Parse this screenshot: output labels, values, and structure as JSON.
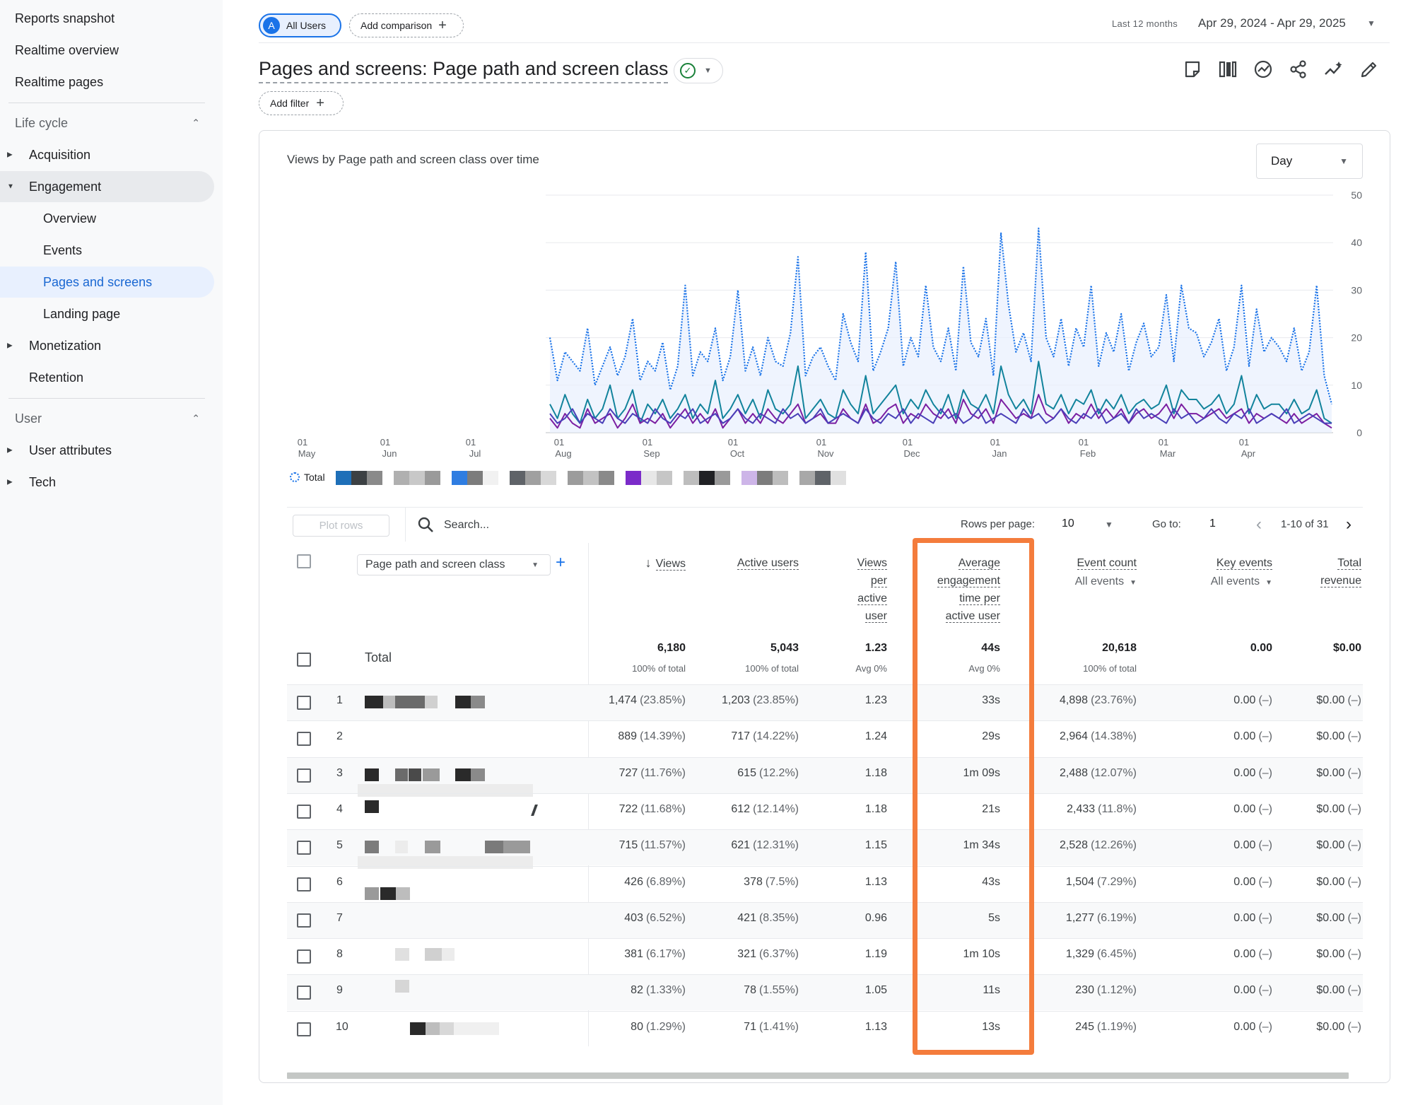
{
  "sidebar": {
    "top_items": [
      "Reports snapshot",
      "Realtime overview",
      "Realtime pages"
    ],
    "sections": [
      {
        "title": "Life cycle",
        "items": [
          {
            "label": "Acquisition",
            "expandable": true
          },
          {
            "label": "Engagement",
            "expandable": true,
            "expanded": true,
            "children": [
              "Overview",
              "Events",
              "Pages and screens",
              "Landing page"
            ],
            "selected_child": "Pages and screens"
          },
          {
            "label": "Monetization",
            "expandable": true
          },
          {
            "label": "Retention",
            "expandable": false
          }
        ]
      },
      {
        "title": "User",
        "items": [
          {
            "label": "User attributes",
            "expandable": true
          },
          {
            "label": "Tech",
            "expandable": true
          }
        ]
      }
    ]
  },
  "header": {
    "segment_badge": "A",
    "segment_label": "All Users",
    "add_comparison": "Add comparison",
    "date_range_label": "Last 12 months",
    "date_range_value": "Apr 29, 2024 - Apr 29, 2025",
    "title": "Pages and screens: Page path and screen class",
    "add_filter": "Add filter",
    "toolbar_icons": [
      "insights-note-icon",
      "compare-columns-icon",
      "explore-insights-icon",
      "share-icon",
      "trend-icon",
      "edit-icon"
    ]
  },
  "chart": {
    "title": "Views by Page path and screen class over time",
    "granularity": "Day",
    "legend_total": "Total",
    "colors": {
      "total": "#1a73e8",
      "series_teal": "#12839c",
      "series_purple": "#7b1fa2",
      "series_violet": "#4a3fb8"
    }
  },
  "chart_data": {
    "type": "line",
    "x_ticks": [
      {
        "day": "01",
        "month": "May"
      },
      {
        "day": "01",
        "month": "Jun"
      },
      {
        "day": "01",
        "month": "Jul"
      },
      {
        "day": "01",
        "month": "Aug"
      },
      {
        "day": "01",
        "month": "Sep"
      },
      {
        "day": "01",
        "month": "Oct"
      },
      {
        "day": "01",
        "month": "Nov"
      },
      {
        "day": "01",
        "month": "Dec"
      },
      {
        "day": "01",
        "month": "Jan"
      },
      {
        "day": "01",
        "month": "Feb"
      },
      {
        "day": "01",
        "month": "Mar"
      },
      {
        "day": "01",
        "month": "Apr"
      }
    ],
    "y_ticks": [
      "0",
      "10",
      "20",
      "30",
      "40",
      "50"
    ],
    "ylim": [
      0,
      50
    ],
    "grid": true,
    "series": [
      {
        "name": "Total",
        "style": "dotted",
        "color": "#1a73e8",
        "values": [
          20,
          11,
          17,
          15,
          13,
          22,
          10,
          14,
          18,
          12,
          16,
          24,
          11,
          15,
          13,
          19,
          9,
          14,
          31,
          12,
          17,
          15,
          22,
          11,
          16,
          30,
          13,
          18,
          12,
          20,
          15,
          14,
          21,
          37,
          12,
          16,
          18,
          14,
          11,
          25,
          19,
          15,
          38,
          13,
          17,
          22,
          36,
          14,
          20,
          16,
          31,
          18,
          15,
          22,
          13,
          35,
          19,
          16,
          24,
          12,
          42,
          27,
          17,
          21,
          15,
          43,
          20,
          16,
          24,
          14,
          22,
          18,
          31,
          14,
          21,
          17,
          25,
          13,
          19,
          23,
          16,
          18,
          29,
          15,
          31,
          22,
          21,
          16,
          19,
          24,
          13,
          18,
          31,
          14,
          26,
          17,
          20,
          18,
          15,
          22,
          13,
          17,
          31,
          12,
          6
        ]
      },
      {
        "name": "",
        "style": "solid",
        "color": "#12839c",
        "values": [
          6,
          3,
          8,
          4,
          2,
          7,
          3,
          5,
          10,
          3,
          5,
          9,
          2,
          6,
          4,
          7,
          3,
          5,
          8,
          3,
          6,
          4,
          11,
          3,
          5,
          8,
          4,
          7,
          3,
          9,
          5,
          4,
          6,
          14,
          3,
          5,
          7,
          4,
          3,
          9,
          6,
          4,
          12,
          4,
          6,
          8,
          10,
          4,
          7,
          5,
          9,
          6,
          4,
          8,
          3,
          9,
          6,
          5,
          8,
          4,
          14,
          8,
          5,
          7,
          4,
          15,
          6,
          5,
          8,
          4,
          7,
          6,
          9,
          4,
          7,
          5,
          8,
          4,
          6,
          7,
          5,
          6,
          10,
          4,
          9,
          7,
          7,
          5,
          6,
          8,
          4,
          6,
          12,
          4,
          8,
          5,
          6,
          6,
          4,
          7,
          4,
          5,
          9,
          3,
          2
        ]
      },
      {
        "name": "",
        "style": "solid",
        "color": "#7b1fa2",
        "values": [
          3,
          1,
          4,
          2,
          1,
          5,
          2,
          3,
          4,
          1,
          3,
          6,
          2,
          3,
          2,
          4,
          1,
          3,
          5,
          2,
          4,
          2,
          5,
          1,
          3,
          5,
          2,
          4,
          2,
          5,
          3,
          2,
          4,
          6,
          2,
          3,
          4,
          2,
          2,
          5,
          3,
          2,
          6,
          2,
          3,
          5,
          6,
          2,
          4,
          3,
          6,
          4,
          3,
          5,
          2,
          7,
          4,
          3,
          5,
          2,
          7,
          5,
          3,
          4,
          3,
          8,
          4,
          3,
          5,
          2,
          4,
          3,
          6,
          3,
          5,
          3,
          5,
          2,
          4,
          5,
          3,
          4,
          6,
          3,
          6,
          4,
          4,
          3,
          4,
          5,
          3,
          4,
          5,
          2,
          4,
          3,
          4,
          3,
          2,
          4,
          2,
          3,
          4,
          2,
          1
        ]
      },
      {
        "name": "",
        "style": "solid",
        "color": "#4a3fb8",
        "values": [
          4,
          2,
          3,
          5,
          2,
          4,
          3,
          2,
          5,
          3,
          2,
          4,
          3,
          2,
          5,
          3,
          2,
          4,
          3,
          5,
          2,
          3,
          4,
          2,
          3,
          5,
          3,
          2,
          4,
          3,
          2,
          5,
          3,
          4,
          2,
          3,
          5,
          2,
          3,
          4,
          3,
          2,
          5,
          3,
          2,
          4,
          3,
          5,
          2,
          4,
          3,
          2,
          5,
          3,
          4,
          2,
          3,
          5,
          2,
          3,
          4,
          3,
          2,
          5,
          3,
          4,
          2,
          3,
          5,
          3,
          2,
          4,
          3,
          5,
          2,
          3,
          4,
          2,
          5,
          3,
          4,
          3,
          2,
          5,
          3,
          4,
          2,
          3,
          5,
          3,
          2,
          4,
          3,
          5,
          2,
          3,
          4,
          3,
          5,
          2,
          3,
          4,
          3,
          2,
          2
        ]
      }
    ]
  },
  "legend_swatches": [
    "#1e6fb8",
    "#3c4043",
    "#8a8a8a",
    "#b0b0b0",
    "#c8c8c8",
    "#9a9a9a",
    "#2f7de1",
    "#7c7c7c",
    "#f1f1f1",
    "#5f6368",
    "#a0a0a0",
    "#d8d8d8",
    "#9c9c9c",
    "#c2c2c2",
    "#8a8a8a",
    "#7b2bc9",
    "#e7e7e7",
    "#c6c6c6",
    "#bdbdbd",
    "#202124",
    "#9a9a9a",
    "#cdb5e8",
    "#7c7c7c",
    "#bdbdbd",
    "#a8a8a8",
    "#5f6368",
    "#e0e0e0"
  ],
  "table": {
    "plot_rows": "Plot rows",
    "search_placeholder": "Search...",
    "rows_per_page_label": "Rows per page:",
    "rows_per_page": "10",
    "goto_label": "Go to:",
    "goto_value": "1",
    "page_range": "1-10 of 31",
    "dimension": "Page path and screen class",
    "columns": [
      {
        "key": "views",
        "lines": [
          "Views"
        ],
        "sorted": true
      },
      {
        "key": "active_users",
        "lines": [
          "Active users"
        ]
      },
      {
        "key": "views_per_user",
        "lines": [
          "Views",
          "per",
          "active",
          "user"
        ]
      },
      {
        "key": "avg_engagement",
        "lines": [
          "Average",
          "engagement",
          "time per",
          "active user"
        ]
      },
      {
        "key": "event_count",
        "lines": [
          "Event count"
        ],
        "sub": "All events"
      },
      {
        "key": "key_events",
        "lines": [
          "Key events"
        ],
        "sub": "All events"
      },
      {
        "key": "total_revenue",
        "lines": [
          "Total",
          "revenue"
        ]
      }
    ],
    "total": {
      "label": "Total",
      "values": [
        "6,180",
        "5,043",
        "1.23",
        "44s",
        "20,618",
        "0.00",
        "$0.00"
      ],
      "subs": [
        "100% of total",
        "100% of total",
        "Avg 0%",
        "Avg 0%",
        "100% of total",
        "",
        ""
      ]
    },
    "rows": [
      {
        "n": "1",
        "cells": [
          [
            "1,474",
            "(23.85%)"
          ],
          [
            "1,203",
            "(23.85%)"
          ],
          [
            "1.23",
            ""
          ],
          [
            "33s",
            ""
          ],
          [
            "4,898",
            "(23.76%)"
          ],
          [
            "0.00",
            "(–)"
          ],
          [
            "$0.00",
            "(–)"
          ]
        ]
      },
      {
        "n": "2",
        "cells": [
          [
            "889",
            "(14.39%)"
          ],
          [
            "717",
            "(14.22%)"
          ],
          [
            "1.24",
            ""
          ],
          [
            "29s",
            ""
          ],
          [
            "2,964",
            "(14.38%)"
          ],
          [
            "0.00",
            "(–)"
          ],
          [
            "$0.00",
            "(–)"
          ]
        ]
      },
      {
        "n": "3",
        "cells": [
          [
            "727",
            "(11.76%)"
          ],
          [
            "615",
            "(12.2%)"
          ],
          [
            "1.18",
            ""
          ],
          [
            "1m 09s",
            ""
          ],
          [
            "2,488",
            "(12.07%)"
          ],
          [
            "0.00",
            "(–)"
          ],
          [
            "$0.00",
            "(–)"
          ]
        ]
      },
      {
        "n": "4",
        "cells": [
          [
            "722",
            "(11.68%)"
          ],
          [
            "612",
            "(12.14%)"
          ],
          [
            "1.18",
            ""
          ],
          [
            "21s",
            ""
          ],
          [
            "2,433",
            "(11.8%)"
          ],
          [
            "0.00",
            "(–)"
          ],
          [
            "$0.00",
            "(–)"
          ]
        ]
      },
      {
        "n": "5",
        "cells": [
          [
            "715",
            "(11.57%)"
          ],
          [
            "621",
            "(12.31%)"
          ],
          [
            "1.15",
            ""
          ],
          [
            "1m 34s",
            ""
          ],
          [
            "2,528",
            "(12.26%)"
          ],
          [
            "0.00",
            "(–)"
          ],
          [
            "$0.00",
            "(–)"
          ]
        ]
      },
      {
        "n": "6",
        "cells": [
          [
            "426",
            "(6.89%)"
          ],
          [
            "378",
            "(7.5%)"
          ],
          [
            "1.13",
            ""
          ],
          [
            "43s",
            ""
          ],
          [
            "1,504",
            "(7.29%)"
          ],
          [
            "0.00",
            "(–)"
          ],
          [
            "$0.00",
            "(–)"
          ]
        ]
      },
      {
        "n": "7",
        "cells": [
          [
            "403",
            "(6.52%)"
          ],
          [
            "421",
            "(8.35%)"
          ],
          [
            "0.96",
            ""
          ],
          [
            "5s",
            ""
          ],
          [
            "1,277",
            "(6.19%)"
          ],
          [
            "0.00",
            "(–)"
          ],
          [
            "$0.00",
            "(–)"
          ]
        ]
      },
      {
        "n": "8",
        "cells": [
          [
            "381",
            "(6.17%)"
          ],
          [
            "321",
            "(6.37%)"
          ],
          [
            "1.19",
            ""
          ],
          [
            "1m 10s",
            ""
          ],
          [
            "1,329",
            "(6.45%)"
          ],
          [
            "0.00",
            "(–)"
          ],
          [
            "$0.00",
            "(–)"
          ]
        ]
      },
      {
        "n": "9",
        "cells": [
          [
            "82",
            "(1.33%)"
          ],
          [
            "78",
            "(1.55%)"
          ],
          [
            "1.05",
            ""
          ],
          [
            "11s",
            ""
          ],
          [
            "230",
            "(1.12%)"
          ],
          [
            "0.00",
            "(–)"
          ],
          [
            "$0.00",
            "(–)"
          ]
        ]
      },
      {
        "n": "10",
        "cells": [
          [
            "80",
            "(1.29%)"
          ],
          [
            "71",
            "(1.41%)"
          ],
          [
            "1.13",
            ""
          ],
          [
            "13s",
            ""
          ],
          [
            "245",
            "(1.19%)"
          ],
          [
            "0.00",
            "(–)"
          ],
          [
            "$0.00",
            "(–)"
          ]
        ]
      }
    ]
  },
  "highlight_color": "#f47c3c"
}
